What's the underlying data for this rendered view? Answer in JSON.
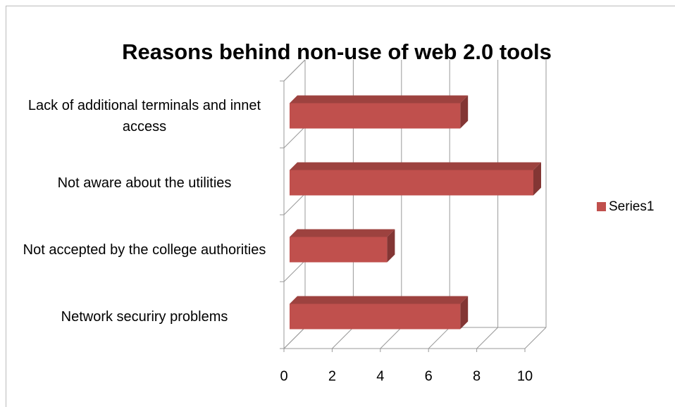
{
  "chart_data": {
    "type": "bar",
    "orientation": "horizontal",
    "title": "Reasons behind non-use of web 2.0 tools",
    "categories": [
      "Lack of additional terminals and innet access",
      "Not aware about the utilities",
      "Not accepted by the college authorities",
      "Network securiry problems"
    ],
    "series": [
      {
        "name": "Series1",
        "color": "#c0504d",
        "values": [
          7,
          10,
          4,
          7
        ]
      }
    ],
    "xlim": [
      0,
      10
    ],
    "xticks": [
      0,
      2,
      4,
      6,
      8,
      10
    ],
    "grid": true,
    "legend": "right"
  }
}
